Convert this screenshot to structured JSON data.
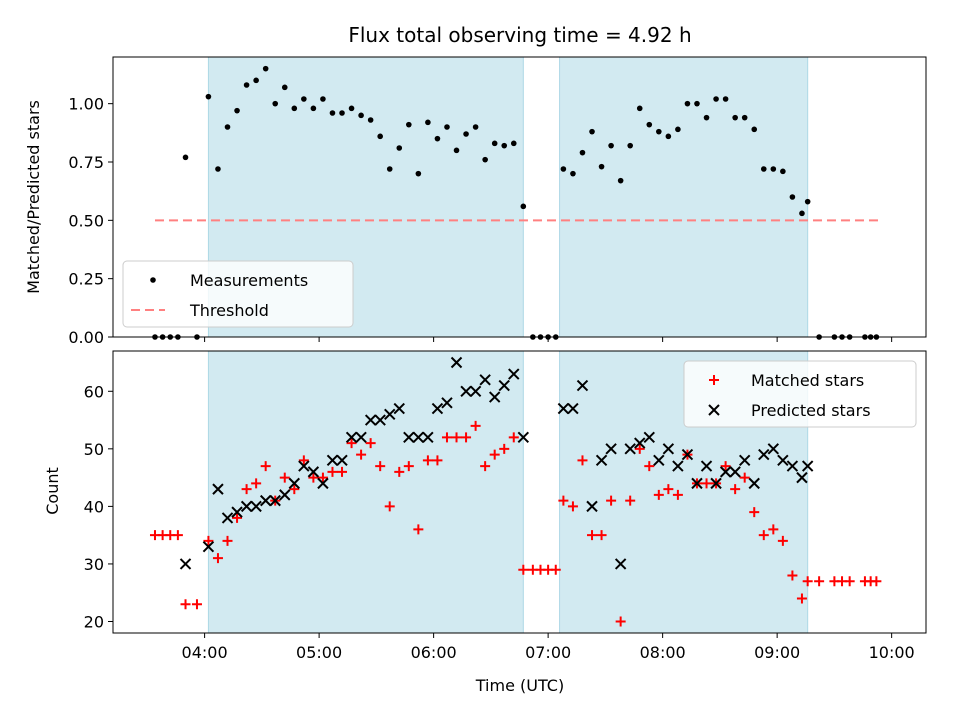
{
  "figure": {
    "title": "Flux total observing time = 4.92 h",
    "xlabel": "Time (UTC)",
    "top_ylabel": "Matched/Predicted stars",
    "bottom_ylabel": "Count"
  },
  "chart_data": [
    {
      "type": "scatter",
      "panel": "top",
      "title": "Flux total observing time = 4.92 h",
      "xlabel": "",
      "ylabel": "Matched/Predicted stars",
      "xlim": [
        "03:12",
        "10:18"
      ],
      "ylim": [
        0,
        1.2
      ],
      "x_ticks": [
        "04:00",
        "05:00",
        "06:00",
        "07:00",
        "08:00",
        "09:00",
        "10:00"
      ],
      "y_ticks": [
        "0.00",
        "0.25",
        "0.50",
        "0.75",
        "1.00"
      ],
      "y_tick_values": [
        0,
        0.25,
        0.5,
        0.75,
        1.0
      ],
      "shaded_intervals": [
        [
          "04:02",
          "06:47"
        ],
        [
          "07:06",
          "09:16"
        ]
      ],
      "shade_color": "#add8e6",
      "legend": {
        "position": "lower left",
        "entries": [
          "Measurements",
          "Threshold"
        ]
      },
      "series": [
        {
          "name": "Measurements",
          "marker": "dot",
          "color": "#000000",
          "points": [
            [
              "03:34",
              0
            ],
            [
              "03:38",
              0
            ],
            [
              "03:42",
              0
            ],
            [
              "03:46",
              0
            ],
            [
              "03:50",
              0.77
            ],
            [
              "03:56",
              0
            ],
            [
              "04:02",
              1.03
            ],
            [
              "04:07",
              0.72
            ],
            [
              "04:12",
              0.9
            ],
            [
              "04:17",
              0.97
            ],
            [
              "04:22",
              1.08
            ],
            [
              "04:27",
              1.1
            ],
            [
              "04:32",
              1.15
            ],
            [
              "04:37",
              1.0
            ],
            [
              "04:42",
              1.07
            ],
            [
              "04:47",
              0.98
            ],
            [
              "04:52",
              1.02
            ],
            [
              "04:57",
              0.98
            ],
            [
              "05:02",
              1.02
            ],
            [
              "05:07",
              0.96
            ],
            [
              "05:12",
              0.96
            ],
            [
              "05:17",
              0.98
            ],
            [
              "05:22",
              0.95
            ],
            [
              "05:27",
              0.93
            ],
            [
              "05:32",
              0.86
            ],
            [
              "05:37",
              0.72
            ],
            [
              "05:42",
              0.81
            ],
            [
              "05:47",
              0.91
            ],
            [
              "05:52",
              0.7
            ],
            [
              "05:57",
              0.92
            ],
            [
              "06:02",
              0.85
            ],
            [
              "06:07",
              0.9
            ],
            [
              "06:12",
              0.8
            ],
            [
              "06:17",
              0.87
            ],
            [
              "06:22",
              0.9
            ],
            [
              "06:27",
              0.76
            ],
            [
              "06:32",
              0.83
            ],
            [
              "06:37",
              0.82
            ],
            [
              "06:42",
              0.83
            ],
            [
              "06:47",
              0.56
            ],
            [
              "06:52",
              0
            ],
            [
              "06:56",
              0
            ],
            [
              "07:00",
              0
            ],
            [
              "07:04",
              0
            ],
            [
              "07:08",
              0.72
            ],
            [
              "07:13",
              0.7
            ],
            [
              "07:18",
              0.79
            ],
            [
              "07:23",
              0.88
            ],
            [
              "07:28",
              0.73
            ],
            [
              "07:33",
              0.82
            ],
            [
              "07:38",
              0.67
            ],
            [
              "07:43",
              0.82
            ],
            [
              "07:48",
              0.98
            ],
            [
              "07:53",
              0.91
            ],
            [
              "07:58",
              0.88
            ],
            [
              "08:03",
              0.86
            ],
            [
              "08:08",
              0.89
            ],
            [
              "08:13",
              1.0
            ],
            [
              "08:18",
              1.0
            ],
            [
              "08:23",
              0.94
            ],
            [
              "08:28",
              1.02
            ],
            [
              "08:33",
              1.02
            ],
            [
              "08:38",
              0.94
            ],
            [
              "08:43",
              0.94
            ],
            [
              "08:48",
              0.89
            ],
            [
              "08:53",
              0.72
            ],
            [
              "08:58",
              0.72
            ],
            [
              "09:03",
              0.71
            ],
            [
              "09:08",
              0.6
            ],
            [
              "09:13",
              0.53
            ],
            [
              "09:16",
              0.58
            ],
            [
              "09:22",
              0
            ],
            [
              "09:30",
              0
            ],
            [
              "09:34",
              0
            ],
            [
              "09:38",
              0
            ],
            [
              "09:46",
              0
            ],
            [
              "09:49",
              0
            ],
            [
              "09:52",
              0
            ]
          ]
        },
        {
          "name": "Threshold",
          "style": "dashed",
          "color": "#ff8080",
          "points": [
            [
              "03:34",
              0.5
            ],
            [
              "09:54",
              0.5
            ]
          ]
        }
      ]
    },
    {
      "type": "scatter",
      "panel": "bottom",
      "title": "",
      "xlabel": "Time (UTC)",
      "ylabel": "Count",
      "xlim": [
        "03:12",
        "10:18"
      ],
      "ylim": [
        18,
        67
      ],
      "x_ticks": [
        "04:00",
        "05:00",
        "06:00",
        "07:00",
        "08:00",
        "09:00",
        "10:00"
      ],
      "y_ticks": [
        "20",
        "30",
        "40",
        "50",
        "60"
      ],
      "y_tick_values": [
        20,
        30,
        40,
        50,
        60
      ],
      "shaded_intervals": [
        [
          "04:02",
          "06:47"
        ],
        [
          "07:06",
          "09:16"
        ]
      ],
      "shade_color": "#add8e6",
      "legend": {
        "position": "upper right",
        "entries": [
          "Matched stars",
          "Predicted stars"
        ]
      },
      "series": [
        {
          "name": "Matched stars",
          "marker": "plus",
          "color": "#ff0000",
          "points": [
            [
              "03:34",
              35
            ],
            [
              "03:38",
              35
            ],
            [
              "03:42",
              35
            ],
            [
              "03:46",
              35
            ],
            [
              "03:50",
              23
            ],
            [
              "03:56",
              23
            ],
            [
              "04:02",
              34
            ],
            [
              "04:07",
              31
            ],
            [
              "04:12",
              34
            ],
            [
              "04:17",
              38
            ],
            [
              "04:22",
              43
            ],
            [
              "04:27",
              44
            ],
            [
              "04:32",
              47
            ],
            [
              "04:37",
              41
            ],
            [
              "04:42",
              45
            ],
            [
              "04:47",
              43
            ],
            [
              "04:52",
              48
            ],
            [
              "04:57",
              45
            ],
            [
              "05:02",
              45
            ],
            [
              "05:07",
              46
            ],
            [
              "05:12",
              46
            ],
            [
              "05:17",
              51
            ],
            [
              "05:22",
              49
            ],
            [
              "05:27",
              51
            ],
            [
              "05:32",
              47
            ],
            [
              "05:37",
              40
            ],
            [
              "05:42",
              46
            ],
            [
              "05:47",
              47
            ],
            [
              "05:52",
              36
            ],
            [
              "05:57",
              48
            ],
            [
              "06:02",
              48
            ],
            [
              "06:07",
              52
            ],
            [
              "06:12",
              52
            ],
            [
              "06:17",
              52
            ],
            [
              "06:22",
              54
            ],
            [
              "06:27",
              47
            ],
            [
              "06:32",
              49
            ],
            [
              "06:37",
              50
            ],
            [
              "06:42",
              52
            ],
            [
              "06:47",
              29
            ],
            [
              "06:52",
              29
            ],
            [
              "06:56",
              29
            ],
            [
              "07:00",
              29
            ],
            [
              "07:04",
              29
            ],
            [
              "07:08",
              41
            ],
            [
              "07:13",
              40
            ],
            [
              "07:18",
              48
            ],
            [
              "07:23",
              35
            ],
            [
              "07:28",
              35
            ],
            [
              "07:33",
              41
            ],
            [
              "07:38",
              20
            ],
            [
              "07:43",
              41
            ],
            [
              "07:48",
              50
            ],
            [
              "07:53",
              47
            ],
            [
              "07:58",
              42
            ],
            [
              "08:03",
              43
            ],
            [
              "08:08",
              42
            ],
            [
              "08:13",
              49
            ],
            [
              "08:18",
              44
            ],
            [
              "08:23",
              44
            ],
            [
              "08:28",
              44
            ],
            [
              "08:33",
              47
            ],
            [
              "08:38",
              43
            ],
            [
              "08:43",
              45
            ],
            [
              "08:48",
              39
            ],
            [
              "08:53",
              35
            ],
            [
              "08:58",
              36
            ],
            [
              "09:03",
              34
            ],
            [
              "09:08",
              28
            ],
            [
              "09:13",
              24
            ],
            [
              "09:16",
              27
            ],
            [
              "09:22",
              27
            ],
            [
              "09:30",
              27
            ],
            [
              "09:34",
              27
            ],
            [
              "09:38",
              27
            ],
            [
              "09:46",
              27
            ],
            [
              "09:49",
              27
            ],
            [
              "09:52",
              27
            ]
          ]
        },
        {
          "name": "Predicted stars",
          "marker": "x",
          "color": "#000000",
          "points": [
            [
              "03:50",
              30
            ],
            [
              "04:02",
              33
            ],
            [
              "04:07",
              43
            ],
            [
              "04:12",
              38
            ],
            [
              "04:17",
              39
            ],
            [
              "04:22",
              40
            ],
            [
              "04:27",
              40
            ],
            [
              "04:32",
              41
            ],
            [
              "04:37",
              41
            ],
            [
              "04:42",
              42
            ],
            [
              "04:47",
              44
            ],
            [
              "04:52",
              47
            ],
            [
              "04:57",
              46
            ],
            [
              "05:02",
              44
            ],
            [
              "05:07",
              48
            ],
            [
              "05:12",
              48
            ],
            [
              "05:17",
              52
            ],
            [
              "05:22",
              52
            ],
            [
              "05:27",
              55
            ],
            [
              "05:32",
              55
            ],
            [
              "05:37",
              56
            ],
            [
              "05:42",
              57
            ],
            [
              "05:47",
              52
            ],
            [
              "05:52",
              52
            ],
            [
              "05:57",
              52
            ],
            [
              "06:02",
              57
            ],
            [
              "06:07",
              58
            ],
            [
              "06:12",
              65
            ],
            [
              "06:17",
              60
            ],
            [
              "06:22",
              60
            ],
            [
              "06:27",
              62
            ],
            [
              "06:32",
              59
            ],
            [
              "06:37",
              61
            ],
            [
              "06:42",
              63
            ],
            [
              "06:47",
              52
            ],
            [
              "07:08",
              57
            ],
            [
              "07:13",
              57
            ],
            [
              "07:18",
              61
            ],
            [
              "07:23",
              40
            ],
            [
              "07:28",
              48
            ],
            [
              "07:33",
              50
            ],
            [
              "07:38",
              30
            ],
            [
              "07:43",
              50
            ],
            [
              "07:48",
              51
            ],
            [
              "07:53",
              52
            ],
            [
              "07:58",
              48
            ],
            [
              "08:03",
              50
            ],
            [
              "08:08",
              47
            ],
            [
              "08:13",
              49
            ],
            [
              "08:18",
              44
            ],
            [
              "08:23",
              47
            ],
            [
              "08:28",
              44
            ],
            [
              "08:33",
              46
            ],
            [
              "08:38",
              46
            ],
            [
              "08:43",
              48
            ],
            [
              "08:48",
              44
            ],
            [
              "08:53",
              49
            ],
            [
              "08:58",
              50
            ],
            [
              "09:03",
              48
            ],
            [
              "09:08",
              47
            ],
            [
              "09:13",
              45
            ],
            [
              "09:16",
              47
            ]
          ]
        }
      ]
    }
  ]
}
